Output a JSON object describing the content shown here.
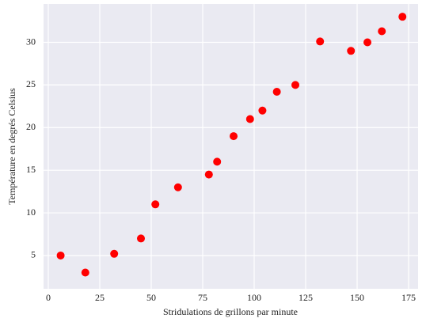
{
  "chart_data": {
    "type": "scatter",
    "x_label": "Stridulations de grillons par minute",
    "y_label": "Température en degrés Celsius",
    "x": [
      6,
      18,
      32,
      45,
      52,
      63,
      78,
      82,
      90,
      98,
      104,
      111,
      120,
      132,
      147,
      155,
      162,
      172
    ],
    "values": [
      5,
      3,
      5.2,
      7,
      11,
      13,
      14.5,
      16,
      19,
      21,
      22,
      24.2,
      25,
      30.1,
      29,
      30,
      31.3,
      33
    ],
    "color": "#ff0000",
    "xlim": [
      -2.3,
      179.6
    ],
    "xticks": [
      0,
      25,
      50,
      75,
      100,
      125,
      150,
      175
    ],
    "ylim": [
      1.1,
      34.5
    ],
    "yticks": [
      5,
      10,
      15,
      20,
      25,
      30
    ],
    "grid": true
  }
}
